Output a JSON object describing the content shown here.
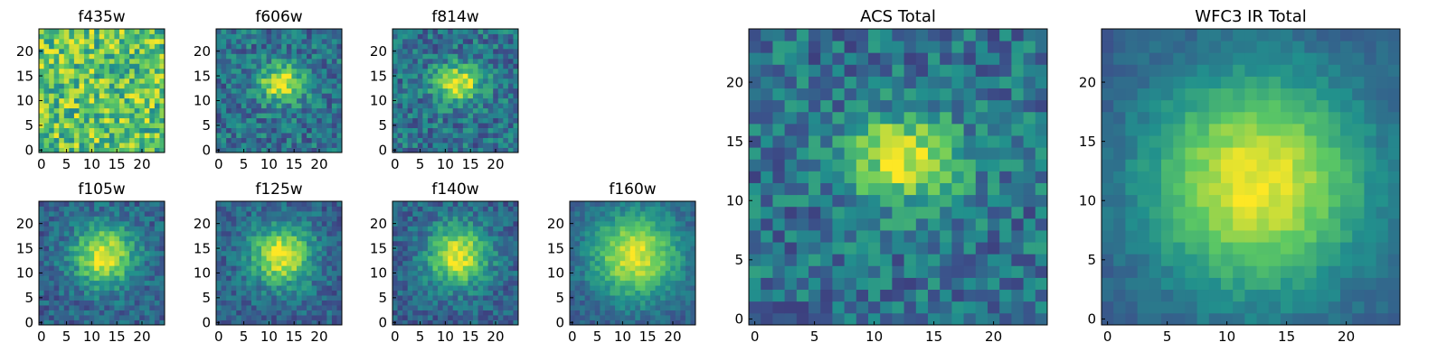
{
  "chart_data": [
    {
      "type": "heatmap",
      "title": "f435w",
      "profile": "noise",
      "seed": 11,
      "x_ticks": [
        "0",
        "5",
        "10",
        "15",
        "20"
      ],
      "y_ticks": [
        "0",
        "5",
        "10",
        "15",
        "20"
      ],
      "xlim": [
        0,
        25
      ],
      "ylim": [
        0,
        25
      ],
      "grid": false
    },
    {
      "type": "heatmap",
      "title": "f606w",
      "profile": "blob-sharp",
      "seed": 23,
      "x_ticks": [
        "0",
        "5",
        "10",
        "15",
        "20"
      ],
      "y_ticks": [
        "0",
        "5",
        "10",
        "15",
        "20"
      ],
      "xlim": [
        0,
        25
      ],
      "ylim": [
        0,
        25
      ],
      "grid": false
    },
    {
      "type": "heatmap",
      "title": "f814w",
      "profile": "blob-sharp",
      "seed": 37,
      "x_ticks": [
        "0",
        "5",
        "10",
        "15",
        "20"
      ],
      "y_ticks": [
        "0",
        "5",
        "10",
        "15",
        "20"
      ],
      "xlim": [
        0,
        25
      ],
      "ylim": [
        0,
        25
      ],
      "grid": false
    },
    {
      "type": "heatmap",
      "title": "f105w",
      "profile": "blob",
      "seed": 41,
      "x_ticks": [
        "0",
        "5",
        "10",
        "15",
        "20"
      ],
      "y_ticks": [
        "0",
        "5",
        "10",
        "15",
        "20"
      ],
      "xlim": [
        0,
        25
      ],
      "ylim": [
        0,
        25
      ],
      "grid": false
    },
    {
      "type": "heatmap",
      "title": "f125w",
      "profile": "blob",
      "seed": 53,
      "x_ticks": [
        "0",
        "5",
        "10",
        "15",
        "20"
      ],
      "y_ticks": [
        "0",
        "5",
        "10",
        "15",
        "20"
      ],
      "xlim": [
        0,
        25
      ],
      "ylim": [
        0,
        25
      ],
      "grid": false
    },
    {
      "type": "heatmap",
      "title": "f140w",
      "profile": "blob",
      "seed": 67,
      "x_ticks": [
        "0",
        "5",
        "10",
        "15",
        "20"
      ],
      "y_ticks": [
        "0",
        "5",
        "10",
        "15",
        "20"
      ],
      "xlim": [
        0,
        25
      ],
      "ylim": [
        0,
        25
      ],
      "grid": false
    },
    {
      "type": "heatmap",
      "title": "f160w",
      "profile": "blob-wide",
      "seed": 79,
      "x_ticks": [
        "0",
        "5",
        "10",
        "15",
        "20"
      ],
      "y_ticks": [
        "0",
        "5",
        "10",
        "15",
        "20"
      ],
      "xlim": [
        0,
        25
      ],
      "ylim": [
        0,
        25
      ],
      "grid": false
    },
    {
      "type": "heatmap",
      "title": "ACS Total",
      "profile": "blob-sharp",
      "seed": 97,
      "x_ticks": [
        "0",
        "5",
        "10",
        "15",
        "20"
      ],
      "y_ticks": [
        "0",
        "5",
        "10",
        "15",
        "20"
      ],
      "xlim": [
        0,
        25
      ],
      "ylim": [
        0,
        25
      ],
      "grid": false
    },
    {
      "type": "heatmap",
      "title": "WFC3 IR Total",
      "profile": "blob-smooth",
      "seed": 113,
      "x_ticks": [
        "0",
        "5",
        "10",
        "15",
        "20"
      ],
      "y_ticks": [
        "0",
        "5",
        "10",
        "15",
        "20"
      ],
      "xlim": [
        0,
        25
      ],
      "ylim": [
        0,
        25
      ],
      "grid": false
    }
  ],
  "colormap": [
    "#440154",
    "#3b528b",
    "#21908d",
    "#5dc963",
    "#fde725"
  ]
}
